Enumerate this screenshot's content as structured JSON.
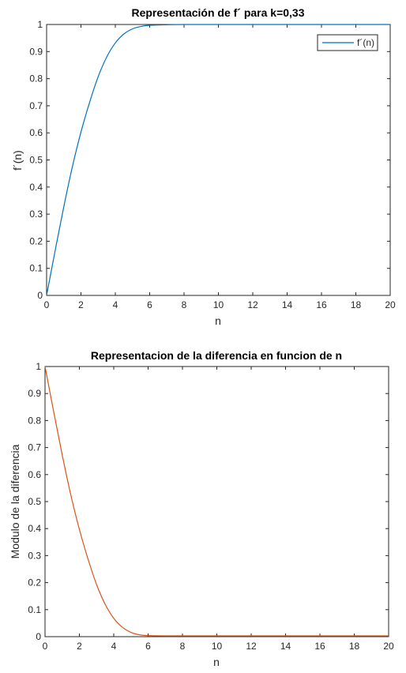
{
  "chart_data": [
    {
      "type": "line",
      "title": "Representación de  f´ para k=0,33",
      "xlabel": "n",
      "ylabel": "f´(n)",
      "xlim": [
        0,
        20
      ],
      "ylim": [
        0,
        1
      ],
      "xticks": [
        "0",
        "2",
        "4",
        "6",
        "8",
        "10",
        "12",
        "14",
        "16",
        "18",
        "20"
      ],
      "yticks": [
        "0",
        "0.1",
        "0.2",
        "0.3",
        "0.4",
        "0.5",
        "0.6",
        "0.7",
        "0.8",
        "0.9",
        "1"
      ],
      "grid": false,
      "legend": "top-right",
      "series": [
        {
          "name": "f´(n)",
          "color": "#0072BD",
          "x": [
            0,
            0.5,
            1,
            1.5,
            2,
            2.5,
            3,
            3.5,
            4,
            4.5,
            5,
            5.5,
            6,
            7,
            8,
            10,
            12,
            14,
            16,
            18,
            20
          ],
          "y": [
            0,
            0.166,
            0.327,
            0.475,
            0.603,
            0.712,
            0.807,
            0.88,
            0.932,
            0.965,
            0.984,
            0.993,
            0.997,
            0.999,
            1.0,
            1.0,
            1.0,
            1.0,
            1.0,
            1.0,
            1.0
          ]
        }
      ]
    },
    {
      "type": "line",
      "title": "Representacion de la diferencia en funcion de n",
      "xlabel": "n",
      "ylabel": "Modulo de la diferencia",
      "xlim": [
        0,
        20
      ],
      "ylim": [
        0,
        1
      ],
      "xticks": [
        "0",
        "2",
        "4",
        "6",
        "8",
        "10",
        "12",
        "14",
        "16",
        "18",
        "20"
      ],
      "yticks": [
        "0",
        "0.1",
        "0.2",
        "0.3",
        "0.4",
        "0.5",
        "0.6",
        "0.7",
        "0.8",
        "0.9",
        "1"
      ],
      "grid": false,
      "series": [
        {
          "color": "#D95319",
          "x": [
            0,
            0.5,
            1,
            1.5,
            2,
            2.5,
            3,
            3.5,
            4,
            4.5,
            5,
            5.5,
            6,
            7,
            8,
            10,
            12,
            14,
            16,
            18,
            20
          ],
          "y": [
            1,
            0.834,
            0.673,
            0.525,
            0.397,
            0.288,
            0.193,
            0.12,
            0.068,
            0.035,
            0.016,
            0.007,
            0.004,
            0.003,
            0.003,
            0.003,
            0.003,
            0.003,
            0.003,
            0.003,
            0.003
          ]
        }
      ]
    }
  ]
}
